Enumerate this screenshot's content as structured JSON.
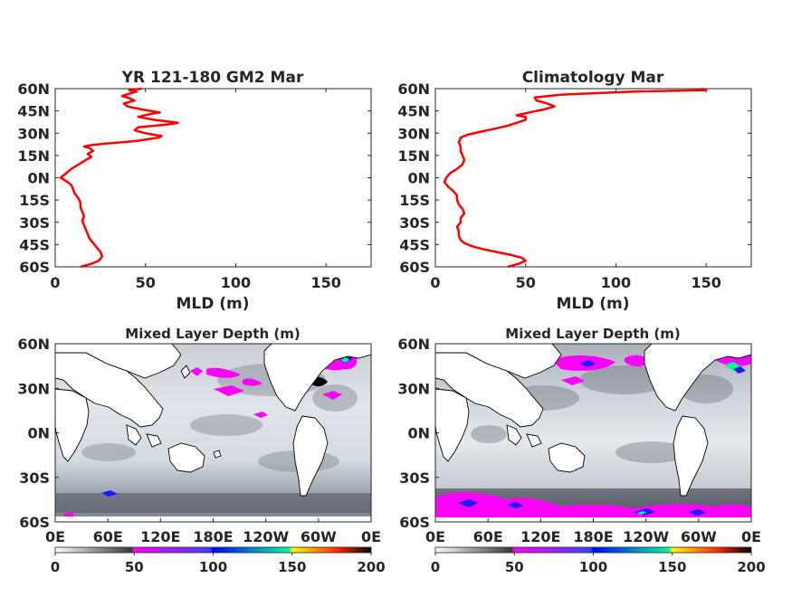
{
  "chart_data": [
    {
      "type": "line",
      "title": "YR 121-180 GM2 Mar",
      "xlabel": "MLD (m)",
      "ylabel": "",
      "xlim": [
        0,
        175
      ],
      "ylim": [
        -60,
        60
      ],
      "x_ticks": [
        "0",
        "50",
        "100",
        "150"
      ],
      "y_ticks": [
        "60N",
        "45N",
        "30N",
        "15N",
        "0N",
        "15S",
        "30S",
        "45S",
        "60S"
      ],
      "color": "#ff0000",
      "series": [
        {
          "points": [
            [
              14,
              -60
            ],
            [
              20,
              -58
            ],
            [
              24,
              -56
            ],
            [
              26,
              -53
            ],
            [
              25,
              -50
            ],
            [
              23,
              -47
            ],
            [
              21,
              -44
            ],
            [
              19,
              -41
            ],
            [
              18,
              -38
            ],
            [
              17,
              -35
            ],
            [
              16,
              -32
            ],
            [
              15,
              -29
            ],
            [
              16,
              -26
            ],
            [
              15,
              -23
            ],
            [
              14,
              -20
            ],
            [
              14,
              -17
            ],
            [
              13,
              -14
            ],
            [
              11,
              -11
            ],
            [
              10,
              -8
            ],
            [
              9,
              -5
            ],
            [
              7,
              -3
            ],
            [
              3,
              0
            ],
            [
              6,
              3
            ],
            [
              9,
              6
            ],
            [
              13,
              9
            ],
            [
              17,
              12
            ],
            [
              20,
              14
            ],
            [
              18,
              16
            ],
            [
              21,
              18
            ],
            [
              19,
              20
            ],
            [
              16,
              21
            ],
            [
              20,
              22
            ],
            [
              28,
              23
            ],
            [
              38,
              24
            ],
            [
              46,
              25
            ],
            [
              52,
              26
            ],
            [
              57,
              27
            ],
            [
              59,
              28
            ],
            [
              50,
              30
            ],
            [
              44,
              32
            ],
            [
              46,
              34
            ],
            [
              55,
              35
            ],
            [
              63,
              36
            ],
            [
              68,
              37
            ],
            [
              55,
              39
            ],
            [
              46,
              41
            ],
            [
              53,
              43
            ],
            [
              58,
              44
            ],
            [
              48,
              46
            ],
            [
              40,
              48
            ],
            [
              38,
              50
            ],
            [
              44,
              52
            ],
            [
              40,
              54
            ],
            [
              37,
              55
            ],
            [
              42,
              57
            ],
            [
              45,
              58
            ],
            [
              41,
              59
            ],
            [
              48,
              60
            ]
          ]
        }
      ]
    },
    {
      "type": "line",
      "title": "Climatology Mar",
      "xlabel": "MLD (m)",
      "ylabel": "",
      "xlim": [
        0,
        175
      ],
      "ylim": [
        -60,
        60
      ],
      "x_ticks": [
        "0",
        "50",
        "100",
        "150"
      ],
      "y_ticks": [
        "60N",
        "45N",
        "30N",
        "15N",
        "0N",
        "15S",
        "30S",
        "45S",
        "60S"
      ],
      "color": "#ff0000",
      "series": [
        {
          "points": [
            [
              40,
              -60
            ],
            [
              46,
              -58
            ],
            [
              50,
              -56
            ],
            [
              48,
              -54
            ],
            [
              42,
              -52
            ],
            [
              34,
              -50
            ],
            [
              26,
              -48
            ],
            [
              20,
              -46
            ],
            [
              16,
              -44
            ],
            [
              14,
              -42
            ],
            [
              13,
              -39
            ],
            [
              13,
              -36
            ],
            [
              12,
              -33
            ],
            [
              14,
              -30
            ],
            [
              14,
              -27
            ],
            [
              16,
              -24
            ],
            [
              15,
              -21
            ],
            [
              13,
              -18
            ],
            [
              12,
              -15
            ],
            [
              12,
              -12
            ],
            [
              10,
              -9
            ],
            [
              7,
              -6
            ],
            [
              5,
              -3
            ],
            [
              6,
              0
            ],
            [
              8,
              3
            ],
            [
              12,
              6
            ],
            [
              15,
              9
            ],
            [
              16,
              12
            ],
            [
              15,
              15
            ],
            [
              14,
              18
            ],
            [
              14,
              21
            ],
            [
              13,
              24
            ],
            [
              14,
              27
            ],
            [
              18,
              29
            ],
            [
              25,
              31
            ],
            [
              33,
              33
            ],
            [
              40,
              35
            ],
            [
              45,
              37
            ],
            [
              50,
              39
            ],
            [
              50,
              41
            ],
            [
              45,
              42
            ],
            [
              52,
              44
            ],
            [
              60,
              46
            ],
            [
              66,
              48
            ],
            [
              62,
              50
            ],
            [
              56,
              52
            ],
            [
              55,
              54
            ],
            [
              70,
              56
            ],
            [
              110,
              58
            ],
            [
              150,
              59
            ],
            [
              148,
              60
            ]
          ]
        }
      ]
    },
    {
      "type": "heatmap",
      "title": "Mixed Layer Depth (m)",
      "x_ticks": [
        "0E",
        "60E",
        "120E",
        "180E",
        "120W",
        "60W",
        "0E"
      ],
      "y_ticks": [
        "60N",
        "30N",
        "0N",
        "30S",
        "60S"
      ],
      "colorbar_ticks": [
        "0",
        "50",
        "100",
        "150",
        "200"
      ],
      "colorbar_range": [
        0,
        200
      ],
      "colormap": [
        "#ffffff",
        "#3a3a3a",
        "#ff00ff",
        "#2020ff",
        "#00ff90",
        "#ffff00",
        "#ff0000",
        "#000000"
      ]
    },
    {
      "type": "heatmap",
      "title": "Mixed Layer Depth (m)",
      "x_ticks": [
        "0E",
        "60E",
        "120E",
        "180E",
        "120W",
        "60W",
        "0E"
      ],
      "y_ticks": [
        "60N",
        "30N",
        "0N",
        "30S",
        "60S"
      ],
      "colorbar_ticks": [
        "0",
        "50",
        "100",
        "150",
        "200"
      ],
      "colorbar_range": [
        0,
        200
      ],
      "colormap": [
        "#ffffff",
        "#3a3a3a",
        "#ff00ff",
        "#2020ff",
        "#00ff90",
        "#ffff00",
        "#ff0000",
        "#000000"
      ]
    }
  ]
}
